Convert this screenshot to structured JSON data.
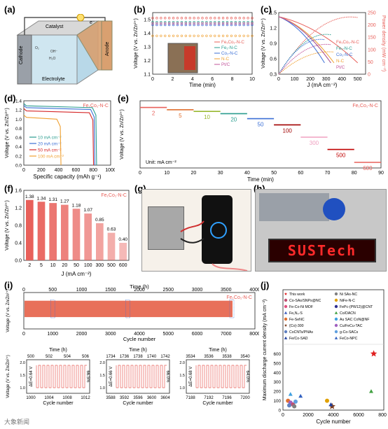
{
  "panel_labels": [
    "(a)",
    "(b)",
    "(c)",
    "(d)",
    "(e)",
    "(f)",
    "(g)",
    "(h)",
    "(i)",
    "(j)"
  ],
  "colors": {
    "fecoblue": "#e8605a",
    "red": "#d62728",
    "teal": "#2a9d8f",
    "blue": "#3b6fd6",
    "magenta": "#c2549a",
    "orange": "#f0a030",
    "salmon": "#f08070"
  },
  "schematic": {
    "cathode": "Cathode",
    "anode": "Anode",
    "electrolyte": "Electrolyte",
    "catalyst": "Catalyst",
    "electron": "e⁻",
    "o2": "O₂",
    "oh": "OH⁻",
    "h2o": "H₂O",
    "bulb_icon": "light-bulb-icon"
  },
  "chart_data": [
    {
      "id": "b",
      "type": "line",
      "xlabel": "Time (min)",
      "ylabel": "Voltage (V vs. Zn/Zn²⁺)",
      "xlim": [
        0,
        10
      ],
      "ylim": [
        1.1,
        1.55
      ],
      "xticks": [
        0,
        2,
        4,
        6,
        8,
        10
      ],
      "yticks": [
        "1.1",
        "1.2",
        "1.3",
        "1.4",
        "1.5"
      ],
      "series": [
        {
          "name": "Fe₁Co₁-N-C",
          "color": "#e8605a",
          "value": 1.51
        },
        {
          "name": "Fe₁-N-C",
          "color": "#2a9d8f",
          "value": 1.48
        },
        {
          "name": "Co₁-N-C",
          "color": "#3b6fd6",
          "value": 1.46
        },
        {
          "name": "N-C",
          "color": "#f0a030",
          "value": 1.38
        },
        {
          "name": "Pt/C",
          "color": "#c2549a",
          "value": 1.47
        }
      ]
    },
    {
      "id": "c",
      "type": "line",
      "xlabel": "J (mA cm⁻²)",
      "ylabel": "Voltage (V vs. Zn/Zn²⁺)",
      "y2label": "Power density (mW cm⁻²)",
      "xlim": [
        0,
        550
      ],
      "ylim": [
        0.3,
        1.5
      ],
      "y2lim": [
        0,
        250
      ],
      "xticks": [
        0,
        100,
        200,
        300,
        400,
        500
      ],
      "yticks": [
        "0.3",
        "0.6",
        "0.9",
        "1.2",
        "1.5"
      ],
      "y2ticks": [
        "0",
        "50",
        "100",
        "150",
        "200",
        "250"
      ],
      "series": [
        {
          "name": "Fe₁Co₁-N-C",
          "color": "#e8605a",
          "jmax": 500,
          "ppd": 230
        },
        {
          "name": "Fe₁-N-C",
          "color": "#2a9d8f",
          "jmax": 330,
          "ppd": 160
        },
        {
          "name": "Co₁-N-C",
          "color": "#3b6fd6",
          "jmax": 290,
          "ppd": 140
        },
        {
          "name": "N-C",
          "color": "#f0a030",
          "jmax": 350,
          "ppd": 90
        },
        {
          "name": "Pt/C",
          "color": "#c2549a",
          "jmax": 330,
          "ppd": 120
        }
      ]
    },
    {
      "id": "d",
      "type": "line",
      "title": "Fe₁Co₁-N-C",
      "xlabel": "Specific capacity (mAh g⁻¹)",
      "ylabel": "Voltage (V vs. Zn/Zn²⁺)",
      "xlim": [
        0,
        1000
      ],
      "ylim": [
        0.0,
        1.4
      ],
      "xticks": [
        0,
        200,
        400,
        600,
        800,
        1000
      ],
      "yticks": [
        "0.0",
        "0.2",
        "0.4",
        "0.6",
        "0.8",
        "1.0",
        "1.2",
        "1.4"
      ],
      "series": [
        {
          "name": "10 mA cm⁻²",
          "color": "#2a9d8f",
          "v": 1.29,
          "cap": 830
        },
        {
          "name": "20 mA cm⁻²",
          "color": "#3b6fd6",
          "v": 1.25,
          "cap": 810
        },
        {
          "name": "50 mA cm⁻²",
          "color": "#d62728",
          "v": 1.18,
          "cap": 795
        },
        {
          "name": "100 mA cm⁻²",
          "color": "#f0a030",
          "v": 1.04,
          "cap": 420
        }
      ]
    },
    {
      "id": "e",
      "type": "line",
      "title": "Fe₁Co₁-N-C",
      "unit_note": "Unit: mA cm⁻²",
      "xlabel": "Time (min)",
      "ylabel": "Voltage (V vs. Zn/Zn²⁺)",
      "xlim": [
        0,
        90
      ],
      "ylim": [
        0.3,
        1.5
      ],
      "xticks": [
        0,
        10,
        20,
        30,
        40,
        50,
        60,
        70,
        80,
        90
      ],
      "segments": [
        {
          "label": "2",
          "v": 1.38,
          "x0": 0,
          "x1": 10,
          "color": "#e8605a"
        },
        {
          "label": "5",
          "v": 1.34,
          "x0": 10,
          "x1": 20,
          "color": "#e07030"
        },
        {
          "label": "10",
          "v": 1.31,
          "x0": 20,
          "x1": 30,
          "color": "#98b830"
        },
        {
          "label": "20",
          "v": 1.27,
          "x0": 30,
          "x1": 40,
          "color": "#2a9d8f"
        },
        {
          "label": "50",
          "v": 1.18,
          "x0": 40,
          "x1": 50,
          "color": "#3b6fd6"
        },
        {
          "label": "100",
          "v": 1.07,
          "x0": 50,
          "x1": 60,
          "color": "#a00000"
        },
        {
          "label": "300",
          "v": 0.85,
          "x0": 60,
          "x1": 70,
          "color": "#f0a0c0"
        },
        {
          "label": "500",
          "v": 0.63,
          "x0": 70,
          "x1": 80,
          "color": "#c00000"
        },
        {
          "label": "600",
          "v": 0.4,
          "x0": 80,
          "x1": 90,
          "color": "#e8605a"
        }
      ]
    },
    {
      "id": "f",
      "type": "bar",
      "title": "Fe₁Co₁-N-C",
      "xlabel": "J (mA cm⁻²)",
      "ylabel": "Voltage (V vs. Zn/Zn²⁺)",
      "ylim": [
        0.0,
        1.6
      ],
      "yticks": [
        "0.0",
        "0.4",
        "0.8",
        "1.2",
        "1.6"
      ],
      "categories": [
        "2",
        "5",
        "10",
        "20",
        "50",
        "100",
        "300",
        "500",
        "600"
      ],
      "values": [
        1.38,
        1.34,
        1.31,
        1.27,
        1.18,
        1.07,
        0.85,
        0.63,
        0.4
      ],
      "value_labels": [
        "1.38",
        "1.34",
        "1.31",
        "1.27",
        "1.18",
        "1.07",
        "0.85",
        "0.63",
        "0.40"
      ]
    },
    {
      "id": "i",
      "type": "line",
      "title": "Fe₁Co₁-N-C",
      "xlabel": "Cycle number",
      "x2label": "Time (h)",
      "ylabel": "Voltage (V vs. Zn/Zn²⁺)",
      "xlim": [
        0,
        8000
      ],
      "x2lim": [
        0,
        4000
      ],
      "ylim": [
        0.5,
        2.5
      ],
      "xticks": [
        "0",
        "1000",
        "2000",
        "3000",
        "4000",
        "5000",
        "6000",
        "7000",
        "8000"
      ],
      "x2ticks": [
        "0",
        "500",
        "1000",
        "1500",
        "2000",
        "2500",
        "3000",
        "3500",
        "4000"
      ],
      "yticks": [
        "0.5",
        "1.0",
        "1.5",
        "2.0",
        "2.5"
      ],
      "charge_v": 2.05,
      "discharge_v": 1.15
    },
    {
      "id": "i-zoom",
      "type": "line",
      "panels": [
        {
          "x2label": "Time (h)",
          "x2ticks": [
            "500",
            "502",
            "504",
            "506"
          ],
          "xticks": [
            "1000",
            "1004",
            "1008",
            "1012"
          ],
          "xlabel": "Cycle number",
          "dE": "ΔE=0.64 V",
          "eff": "66.5%"
        },
        {
          "x2label": "Time (h)",
          "x2ticks": [
            "1734",
            "1736",
            "1738",
            "1740",
            "1742"
          ],
          "xticks": [
            "3588",
            "3592",
            "3596",
            "3600",
            "3604"
          ],
          "xlabel": "Cycle number",
          "dE": "ΔE=0.66 V",
          "eff": "66.0%"
        },
        {
          "x2label": "Time (h)",
          "x2ticks": [
            "3534",
            "3536",
            "3538",
            "3540"
          ],
          "xticks": [
            "7188",
            "7192",
            "7196",
            "7200"
          ],
          "xlabel": "Cycle number",
          "dE": "ΔE=0.68 V",
          "eff": "64.0%"
        }
      ],
      "ylabel": "Voltage (V vs. Zn/Zn²⁺)",
      "yticks": [
        "1.0",
        "1.5",
        "2.0"
      ]
    },
    {
      "id": "j",
      "type": "scatter",
      "xlabel": "Cycle number",
      "ylabel": "Maximum discharge current density (mA cm⁻²)",
      "xlim": [
        0,
        8000
      ],
      "ylim": [
        0,
        700
      ],
      "xticks": [
        "0",
        "2000",
        "4000",
        "6000",
        "8000"
      ],
      "yticks": [
        "0",
        "100",
        "200",
        "300",
        "400",
        "500",
        "600"
      ],
      "legend": [
        {
          "name": "This work",
          "color": "#e02020",
          "marker": "star"
        },
        {
          "name": "Co-SAs/SNPs@NC",
          "color": "#c05070",
          "marker": "circle"
        },
        {
          "name": "Fe-Co-Ni MOF",
          "color": "#e05080",
          "marker": "circle"
        },
        {
          "name": "Fe₁N₄-S",
          "color": "#4060c0",
          "marker": "triangle"
        },
        {
          "name": "Fe-SeNC",
          "color": "#e07030",
          "marker": "circle"
        },
        {
          "name": "{Co}-300",
          "color": "#804020",
          "marker": "star"
        },
        {
          "name": "CoCNTs/PNAs",
          "color": "#6080c0",
          "marker": "circle"
        },
        {
          "name": "Fe/Co-SAD",
          "color": "#2040a0",
          "marker": "triangle"
        },
        {
          "name": "Ni SAs-NC",
          "color": "#808080",
          "marker": "circle"
        },
        {
          "name": "NiFe-N-C",
          "color": "#e0a000",
          "marker": "circle"
        },
        {
          "name": "FePc-(PW12)@CNT",
          "color": "#303090",
          "marker": "circle"
        },
        {
          "name": "Co/DACN",
          "color": "#40a040",
          "marker": "triangle"
        },
        {
          "name": "Au SAC CoN@NF",
          "color": "#40a0e0",
          "marker": "circle"
        },
        {
          "name": "Cu/FeCu-TAC",
          "color": "#a060c0",
          "marker": "circle"
        },
        {
          "name": "g-Co-SACs",
          "color": "#60a0e0",
          "marker": "circle"
        },
        {
          "name": "FeCo-NPC",
          "color": "#3060c0",
          "marker": "triangle"
        }
      ],
      "points": [
        {
          "x": 7200,
          "y": 600,
          "color": "#e02020",
          "marker": "star"
        },
        {
          "x": 7000,
          "y": 200,
          "color": "#40a040",
          "marker": "triangle"
        },
        {
          "x": 3900,
          "y": 40,
          "color": "#804020",
          "marker": "star"
        },
        {
          "x": 600,
          "y": 170,
          "color": "#40a0e0",
          "marker": "triangle"
        },
        {
          "x": 1400,
          "y": 150,
          "color": "#3060c0",
          "marker": "triangle"
        },
        {
          "x": 400,
          "y": 100,
          "color": "#e07030",
          "marker": "circle"
        },
        {
          "x": 600,
          "y": 80,
          "color": "#a060c0",
          "marker": "circle"
        },
        {
          "x": 800,
          "y": 60,
          "color": "#c05070",
          "marker": "circle"
        },
        {
          "x": 500,
          "y": 50,
          "color": "#6080c0",
          "marker": "circle"
        },
        {
          "x": 900,
          "y": 40,
          "color": "#808080",
          "marker": "circle"
        },
        {
          "x": 3500,
          "y": 100,
          "color": "#e0a000",
          "marker": "circle"
        },
        {
          "x": 3800,
          "y": 60,
          "color": "#2040a0",
          "marker": "triangle"
        },
        {
          "x": 1000,
          "y": 90,
          "color": "#60a0e0",
          "marker": "circle"
        }
      ]
    }
  ],
  "photos": {
    "b_inset": "multimeter-photo",
    "g": "phone-charging-photo",
    "h": "led-sign-photo",
    "h_text": "SUSTech",
    "g_screen": "battery-screen-icon"
  },
  "watermark": "大象新闻"
}
